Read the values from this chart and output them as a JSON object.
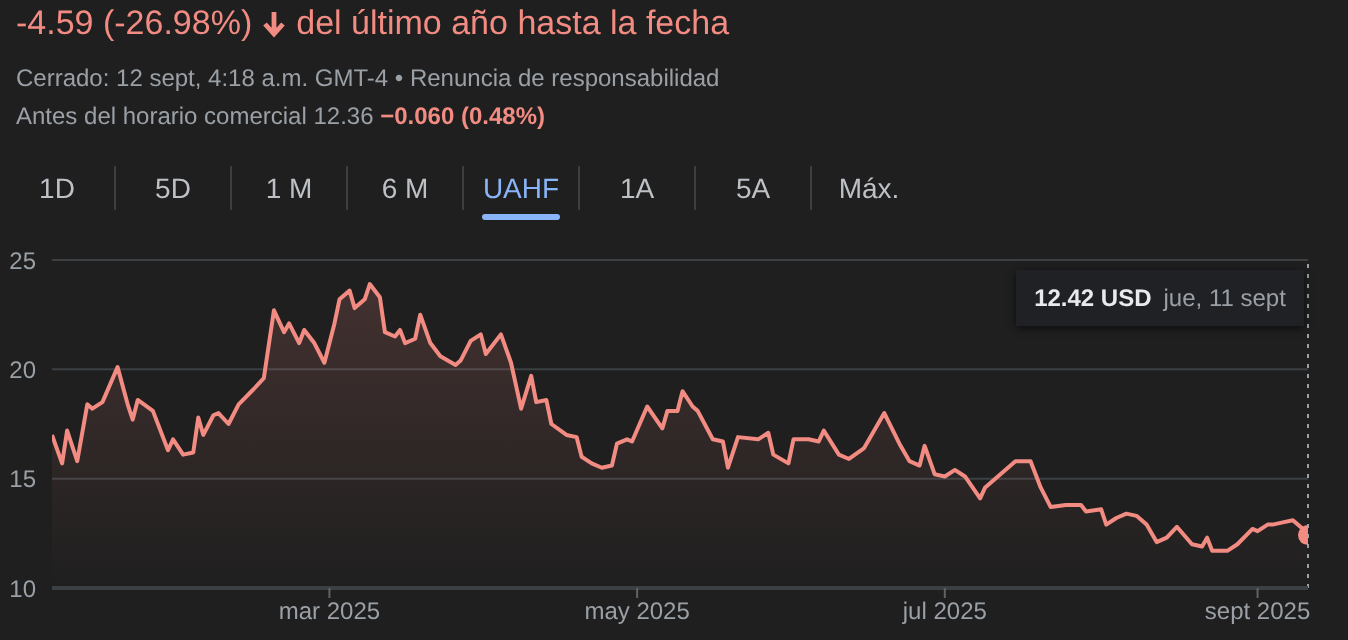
{
  "chart_data": {
    "type": "area",
    "title": "-4.59 (-26.98%)",
    "annotations": [
      "del último año hasta la fecha",
      "Cerrado: 12 sept, 4:18 a.m. GMT-4 • Renuncia de responsabilidad",
      "Antes del horario comercial 12.36",
      "−0.060 (0.48%)",
      "1D",
      "5D",
      "1 M",
      "6 M",
      "UAHF",
      "1A",
      "5A",
      "Máx.",
      "12.42 USD",
      "jue, 11 sept"
    ],
    "x": [
      "2025-01-05",
      "2025-01-07",
      "2025-01-08",
      "2025-01-10",
      "2025-01-12",
      "2025-01-13",
      "2025-01-15",
      "2025-01-18",
      "2025-01-20",
      "2025-01-21",
      "2025-01-22",
      "2025-01-25",
      "2025-01-28",
      "2025-01-29",
      "2025-01-31",
      "2025-02-02",
      "2025-02-03",
      "2025-02-04",
      "2025-02-06",
      "2025-02-07",
      "2025-02-09",
      "2025-02-11",
      "2025-02-14",
      "2025-02-16",
      "2025-02-18",
      "2025-02-20",
      "2025-02-21",
      "2025-02-23",
      "2025-02-24",
      "2025-02-26",
      "2025-02-28",
      "2025-03-02",
      "2025-03-03",
      "2025-03-05",
      "2025-03-06",
      "2025-03-08",
      "2025-03-09",
      "2025-03-11",
      "2025-03-12",
      "2025-03-14",
      "2025-03-15",
      "2025-03-16",
      "2025-03-18",
      "2025-03-19",
      "2025-03-21",
      "2025-03-23",
      "2025-03-26",
      "2025-03-27",
      "2025-03-29",
      "2025-03-31",
      "2025-04-01",
      "2025-04-04",
      "2025-04-06",
      "2025-04-08",
      "2025-04-10",
      "2025-04-11",
      "2025-04-13",
      "2025-04-14",
      "2025-04-17",
      "2025-04-19",
      "2025-04-20",
      "2025-04-22",
      "2025-04-24",
      "2025-04-26",
      "2025-04-27",
      "2025-04-29",
      "2025-04-30",
      "2025-05-03",
      "2025-05-06",
      "2025-05-07",
      "2025-05-09",
      "2025-05-10",
      "2025-05-12",
      "2025-05-13",
      "2025-05-16",
      "2025-05-18",
      "2025-05-19",
      "2025-05-21",
      "2025-05-25",
      "2025-05-27",
      "2025-05-28",
      "2025-05-31",
      "2025-06-01",
      "2025-06-04",
      "2025-06-06",
      "2025-06-07",
      "2025-06-10",
      "2025-06-12",
      "2025-06-15",
      "2025-06-19",
      "2025-06-22",
      "2025-06-24",
      "2025-06-26",
      "2025-06-27",
      "2025-06-29",
      "2025-07-01",
      "2025-07-03",
      "2025-07-05",
      "2025-07-08",
      "2025-07-09",
      "2025-07-11",
      "2025-07-15",
      "2025-07-18",
      "2025-07-20",
      "2025-07-22",
      "2025-07-25",
      "2025-07-28",
      "2025-07-29",
      "2025-08-01",
      "2025-08-02",
      "2025-08-04",
      "2025-08-06",
      "2025-08-08",
      "2025-08-10",
      "2025-08-12",
      "2025-08-14",
      "2025-08-16",
      "2025-08-19",
      "2025-08-21",
      "2025-08-22",
      "2025-08-23",
      "2025-08-26",
      "2025-08-28",
      "2025-08-31",
      "2025-09-01",
      "2025-09-03",
      "2025-09-04",
      "2025-09-06",
      "2025-09-08",
      "2025-09-10",
      "2025-09-11"
    ],
    "series": [
      {
        "color": "#f28b82",
        "values": [
          17.0,
          15.7,
          17.2,
          15.8,
          18.4,
          18.2,
          18.5,
          20.1,
          18.4,
          17.7,
          18.6,
          18.1,
          16.3,
          16.8,
          16.1,
          16.2,
          17.8,
          17.0,
          17.9,
          18.0,
          17.5,
          18.4,
          19.1,
          19.6,
          22.7,
          21.7,
          22.1,
          21.2,
          21.8,
          21.2,
          20.3,
          22.1,
          23.2,
          23.6,
          22.8,
          23.2,
          23.9,
          23.3,
          21.7,
          21.5,
          21.8,
          21.2,
          21.4,
          22.5,
          21.2,
          20.6,
          20.2,
          20.4,
          21.3,
          21.6,
          20.7,
          21.6,
          20.3,
          18.2,
          19.7,
          18.5,
          18.6,
          17.5,
          17.0,
          16.9,
          16.0,
          15.7,
          15.5,
          15.6,
          16.6,
          16.8,
          16.7,
          18.3,
          17.3,
          18.1,
          18.1,
          19.0,
          18.3,
          18.1,
          16.8,
          16.7,
          15.5,
          16.9,
          16.8,
          17.1,
          16.1,
          15.7,
          16.8,
          16.8,
          16.7,
          17.2,
          16.1,
          15.9,
          16.4,
          18.0,
          16.6,
          15.8,
          15.6,
          16.5,
          15.2,
          15.1,
          15.4,
          15.1,
          14.1,
          14.6,
          15.0,
          15.8,
          15.8,
          14.6,
          13.7,
          13.8,
          13.8,
          13.5,
          13.6,
          12.9,
          13.2,
          13.4,
          13.3,
          12.9,
          12.1,
          12.3,
          12.8,
          12.0,
          11.9,
          12.3,
          11.7,
          11.7,
          12.0,
          12.7,
          12.6,
          12.9,
          12.9,
          13.0,
          13.1,
          12.7,
          12.42
        ]
      }
    ],
    "xlim": [
      "2025-01-05",
      "2025-09-11"
    ],
    "xticks": [
      {
        "value": "2025-03-01",
        "label": "mar 2025"
      },
      {
        "value": "2025-05-01",
        "label": "may 2025"
      },
      {
        "value": "2025-07-01",
        "label": "jul 2025"
      },
      {
        "value": "2025-09-01",
        "label": "sept 2025"
      }
    ],
    "ylim": [
      10,
      25
    ],
    "yticks": [
      10,
      15,
      20,
      25
    ],
    "grid": "y",
    "ref_lines": [
      {
        "axis": "x",
        "value": "2025-09-11",
        "color": "#9aa0a6",
        "line_style": "dotted"
      }
    ]
  }
}
